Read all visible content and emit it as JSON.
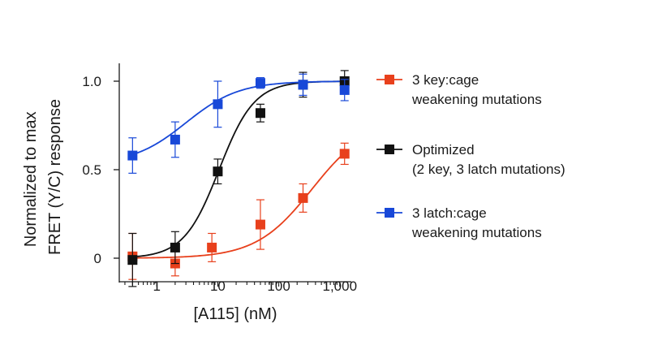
{
  "chart_data": {
    "type": "scatter",
    "title": "",
    "xlabel": "[A115] (nM)",
    "ylabel_lines": [
      "Normalized to max",
      "FRET (Y/C) response"
    ],
    "xscale": "log",
    "xlim": [
      0.25,
      1500
    ],
    "ylim": [
      -0.17,
      1.1
    ],
    "x_ticks": [
      {
        "value": 1,
        "label": "1"
      },
      {
        "value": 10,
        "label": "10"
      },
      {
        "value": 100,
        "label": "100"
      },
      {
        "value": 1000,
        "label": "1,000"
      }
    ],
    "y_ticks": [
      {
        "value": 0,
        "label": "0"
      },
      {
        "value": 0.5,
        "label": "0.5"
      },
      {
        "value": 1.0,
        "label": "1.0"
      }
    ],
    "grid": false,
    "legend_position": "right",
    "series": [
      {
        "name": "3 key:cage weakening mutations",
        "legend_lines": [
          "3 key:cage",
          "weakening mutations"
        ],
        "color": "#e8401c",
        "x": [
          0.4,
          2,
          8,
          50,
          250,
          1200
        ],
        "y": [
          0.01,
          -0.03,
          0.06,
          0.19,
          0.34,
          0.59
        ],
        "err": [
          0.13,
          0.07,
          0.08,
          0.14,
          0.08,
          0.06
        ],
        "fit": {
          "bottom": 0.0,
          "top": 0.78,
          "ec50": 350,
          "hill": 0.95
        }
      },
      {
        "name": "Optimized (2 key, 3 latch mutations)",
        "legend_lines": [
          "Optimized",
          "(2 key, 3 latch mutations)"
        ],
        "color": "#111111",
        "x": [
          0.4,
          2,
          10,
          50,
          250,
          1200
        ],
        "y": [
          -0.01,
          0.06,
          0.49,
          0.82,
          0.98,
          1.0
        ],
        "err": [
          0.15,
          0.09,
          0.07,
          0.05,
          0.07,
          0.06
        ],
        "fit": {
          "bottom": 0.0,
          "top": 1.0,
          "ec50": 10.5,
          "hill": 1.5
        }
      },
      {
        "name": "3 latch:cage weakening mutations",
        "legend_lines": [
          "3 latch:cage",
          "weakening mutations"
        ],
        "color": "#1848d8",
        "x": [
          0.4,
          2,
          10,
          50,
          250,
          1200
        ],
        "y": [
          0.58,
          0.67,
          0.87,
          0.99,
          0.98,
          0.95
        ],
        "err": [
          0.1,
          0.1,
          0.13,
          0.03,
          0.06,
          0.06
        ],
        "fit": {
          "bottom": 0.53,
          "top": 1.0,
          "ec50": 3,
          "hill": 1.0
        }
      }
    ]
  }
}
